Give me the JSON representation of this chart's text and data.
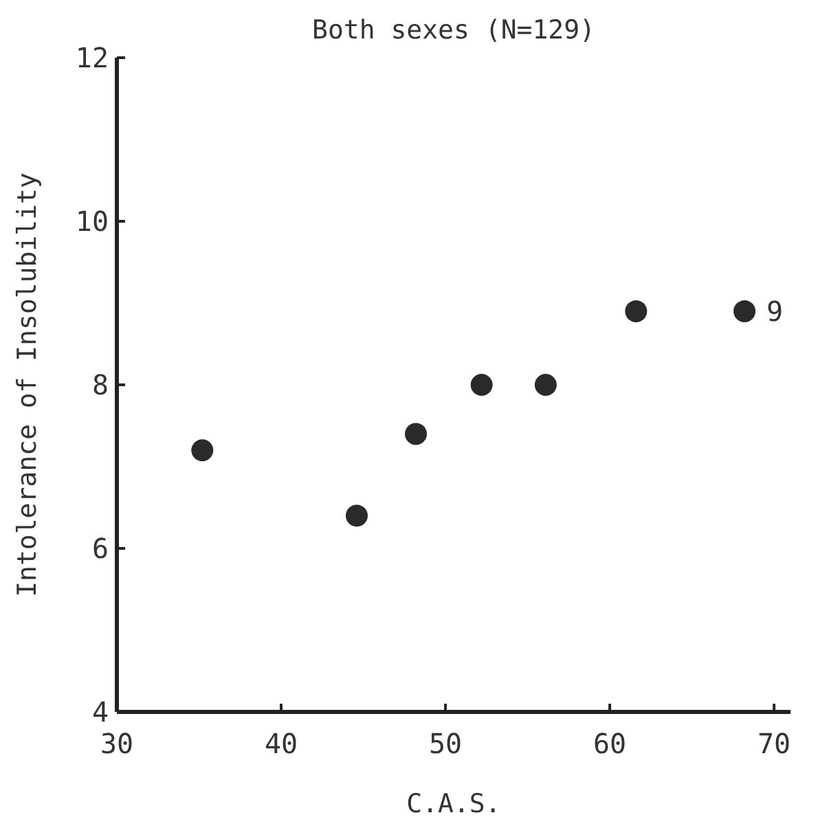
{
  "chart_data": {
    "type": "scatter",
    "title": "Both sexes (N=129)",
    "xlabel": "C.A.S.",
    "ylabel": "Intolerance of Insolubility",
    "x": [
      35.2,
      44.6,
      48.2,
      52.2,
      56.1,
      61.6,
      68.2
    ],
    "values": [
      7.2,
      6.4,
      7.4,
      8.0,
      8.0,
      8.9,
      8.9
    ],
    "color": "#2a2a2a",
    "marker": "circle",
    "xlim": [
      30,
      71
    ],
    "xticks": [
      30,
      40,
      50,
      60,
      70
    ],
    "ylim": [
      4,
      12
    ],
    "yticks": [
      4,
      6,
      8,
      10,
      12
    ],
    "annotations": [
      {
        "text": "9",
        "x": 68.2,
        "y": 8.9
      }
    ]
  }
}
